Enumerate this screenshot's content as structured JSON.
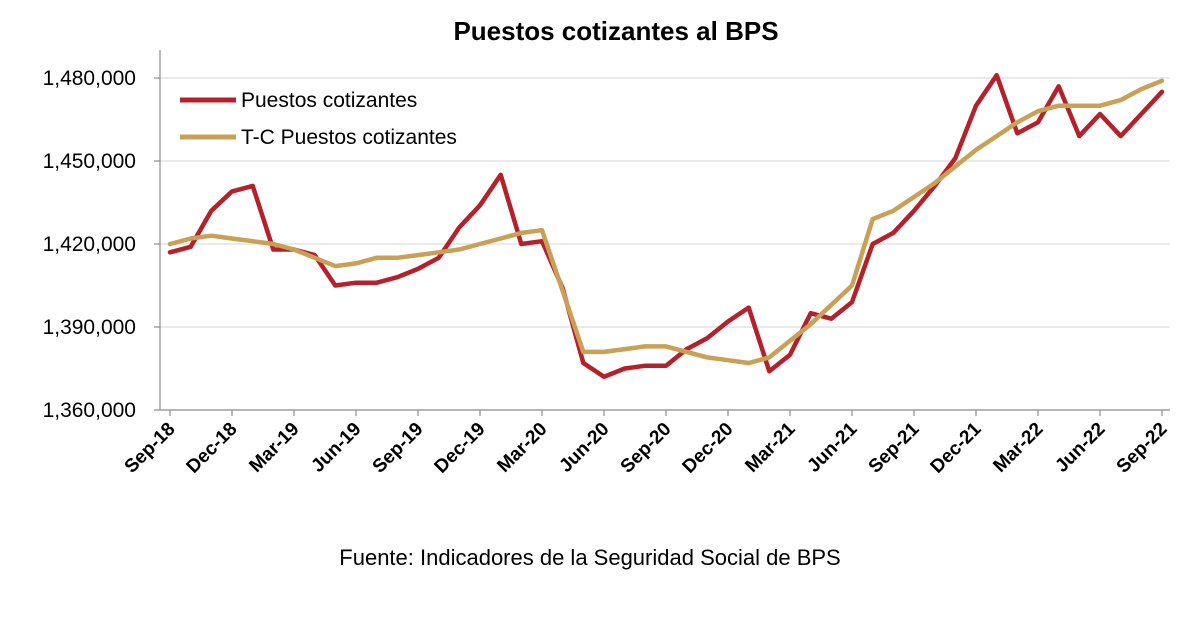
{
  "chart_data": {
    "type": "line",
    "title": "Puestos cotizantes al BPS",
    "source": "Fuente: Indicadores de la Seguridad Social de BPS",
    "legend_position": "top-left",
    "grid": true,
    "ylim": [
      1360000,
      1480000
    ],
    "yticks": [
      1360000,
      1390000,
      1420000,
      1450000,
      1480000
    ],
    "ytick_labels": [
      "1,360,000",
      "1,390,000",
      "1,420,000",
      "1,450,000",
      "1,480,000"
    ],
    "x": [
      "Sep-18",
      "Oct-18",
      "Nov-18",
      "Dec-18",
      "Jan-19",
      "Feb-19",
      "Mar-19",
      "Apr-19",
      "May-19",
      "Jun-19",
      "Jul-19",
      "Aug-19",
      "Sep-19",
      "Oct-19",
      "Nov-19",
      "Dec-19",
      "Jan-20",
      "Feb-20",
      "Mar-20",
      "Apr-20",
      "May-20",
      "Jun-20",
      "Jul-20",
      "Aug-20",
      "Sep-20",
      "Oct-20",
      "Nov-20",
      "Dec-20",
      "Jan-21",
      "Feb-21",
      "Mar-21",
      "Apr-21",
      "May-21",
      "Jun-21",
      "Jul-21",
      "Aug-21",
      "Sep-21",
      "Oct-21",
      "Nov-21",
      "Dec-21",
      "Jan-22",
      "Feb-22",
      "Mar-22",
      "Apr-22",
      "May-22",
      "Jun-22",
      "Jul-22",
      "Aug-22",
      "Sep-22"
    ],
    "xtick_labels": [
      "Sep-18",
      "Dec-18",
      "Mar-19",
      "Jun-19",
      "Sep-19",
      "Dec-19",
      "Mar-20",
      "Jun-20",
      "Sep-20",
      "Dec-20",
      "Mar-21",
      "Jun-21",
      "Sep-21",
      "Dec-21",
      "Mar-22",
      "Jun-22",
      "Sep-22"
    ],
    "series": [
      {
        "name": "Puestos cotizantes",
        "color": "#b5202a",
        "values": [
          1417000,
          1419000,
          1432000,
          1439000,
          1441000,
          1418000,
          1418000,
          1416000,
          1405000,
          1406000,
          1406000,
          1408000,
          1411000,
          1415000,
          1426000,
          1434000,
          1445000,
          1420000,
          1421000,
          1404000,
          1377000,
          1372000,
          1375000,
          1376000,
          1376000,
          1382000,
          1386000,
          1392000,
          1397000,
          1374000,
          1380000,
          1395000,
          1393000,
          1399000,
          1420000,
          1424000,
          1432000,
          1441000,
          1451000,
          1470000,
          1481000,
          1460000,
          1464000,
          1477000,
          1459000,
          1467000,
          1459000,
          1467000,
          1475000
        ]
      },
      {
        "name": "T-C Puestos cotizantes",
        "color": "#c9a056",
        "values": [
          1420000,
          1422000,
          1423000,
          1422000,
          1421000,
          1420000,
          1418000,
          1415000,
          1412000,
          1413000,
          1415000,
          1415000,
          1416000,
          1417000,
          1418000,
          1420000,
          1422000,
          1424000,
          1425000,
          1403000,
          1381000,
          1381000,
          1382000,
          1383000,
          1383000,
          1381000,
          1379000,
          1378000,
          1377000,
          1379000,
          1385000,
          1391000,
          1398000,
          1405000,
          1429000,
          1432000,
          1437000,
          1442000,
          1448000,
          1454000,
          1459000,
          1464000,
          1468000,
          1470000,
          1470000,
          1470000,
          1472000,
          1476000,
          1479000
        ]
      }
    ]
  }
}
